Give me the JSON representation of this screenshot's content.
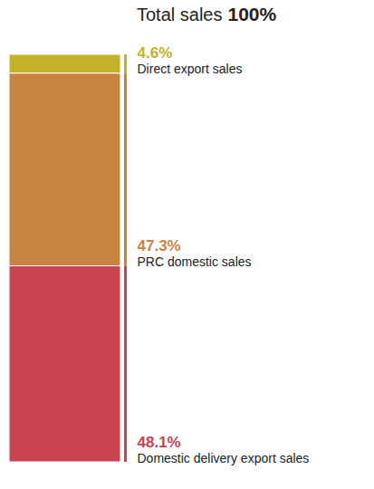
{
  "chart_data": {
    "type": "bar",
    "stacked": true,
    "title": "Total sales",
    "total": {
      "value": 100,
      "label": "100%"
    },
    "categories": [
      "Domestic delivery export sales",
      "PRC domestic sales",
      "Direct export sales"
    ],
    "values": [
      48.1,
      47.3,
      4.6
    ],
    "value_labels": [
      "48.1%",
      "47.3%",
      "4.6%"
    ],
    "colors": [
      "#c8424f",
      "#c98340",
      "#c4b22a"
    ],
    "ylim": [
      0,
      100
    ],
    "tick_labels": false,
    "data_labels": true
  }
}
